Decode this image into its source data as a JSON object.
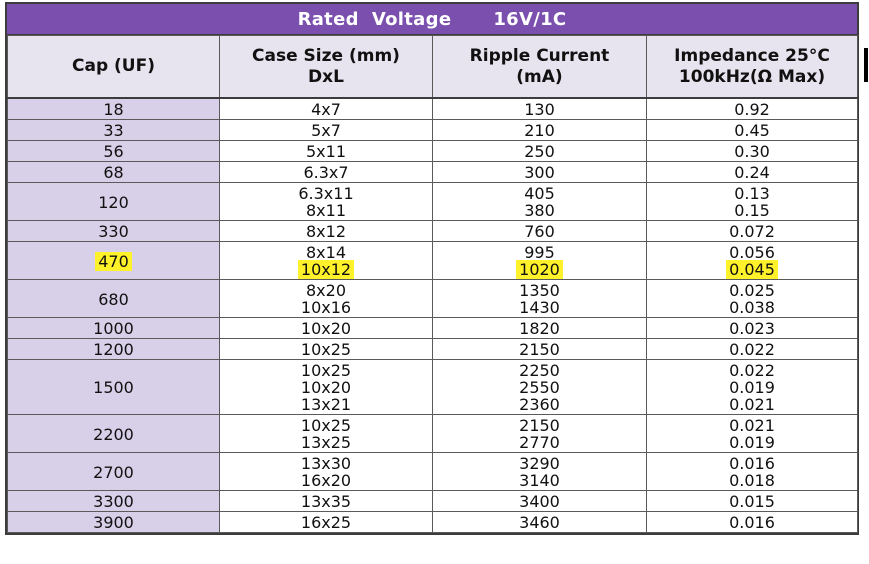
{
  "title": {
    "label": "Rated  Voltage",
    "value": "16V/1C"
  },
  "headers": {
    "cap": "Cap (UF)",
    "case_line1": "Case Size (mm)",
    "case_line2": "DxL",
    "ripple_line1": "Ripple Current",
    "ripple_line2": "(mA)",
    "impedance_line1": "Impedance 25°C",
    "impedance_line2": "100kHz(Ω Max)"
  },
  "rows": [
    {
      "cap": "18",
      "case": [
        "4x7"
      ],
      "ripple": [
        "130"
      ],
      "imp": [
        "0.92"
      ]
    },
    {
      "cap": "33",
      "case": [
        "5x7"
      ],
      "ripple": [
        "210"
      ],
      "imp": [
        "0.45"
      ]
    },
    {
      "cap": "56",
      "case": [
        "5x11"
      ],
      "ripple": [
        "250"
      ],
      "imp": [
        "0.30"
      ]
    },
    {
      "cap": "68",
      "case": [
        "6.3x7"
      ],
      "ripple": [
        "300"
      ],
      "imp": [
        "0.24"
      ]
    },
    {
      "cap": "120",
      "case": [
        "6.3x11",
        "8x11"
      ],
      "ripple": [
        "405",
        "380"
      ],
      "imp": [
        "0.13",
        "0.15"
      ]
    },
    {
      "cap": "330",
      "case": [
        "8x12"
      ],
      "ripple": [
        "760"
      ],
      "imp": [
        "0.072"
      ]
    },
    {
      "cap": "470",
      "case": [
        "8x14",
        "10x12"
      ],
      "ripple": [
        "995",
        "1020"
      ],
      "imp": [
        "0.056",
        "0.045"
      ]
    },
    {
      "cap": "680",
      "case": [
        "8x20",
        "10x16"
      ],
      "ripple": [
        "1350",
        "1430"
      ],
      "imp": [
        "0.025",
        "0.038"
      ]
    },
    {
      "cap": "1000",
      "case": [
        "10x20"
      ],
      "ripple": [
        "1820"
      ],
      "imp": [
        "0.023"
      ]
    },
    {
      "cap": "1200",
      "case": [
        "10x25"
      ],
      "ripple": [
        "2150"
      ],
      "imp": [
        "0.022"
      ]
    },
    {
      "cap": "1500",
      "case": [
        "10x25",
        "10x20",
        "13x21"
      ],
      "ripple": [
        "2250",
        "2550",
        "2360"
      ],
      "imp": [
        "0.022",
        "0.019",
        "0.021"
      ]
    },
    {
      "cap": "2200",
      "case": [
        "10x25",
        "13x25"
      ],
      "ripple": [
        "2150",
        "2770"
      ],
      "imp": [
        "0.021",
        "0.019"
      ]
    },
    {
      "cap": "2700",
      "case": [
        "13x30",
        "16x20"
      ],
      "ripple": [
        "3290",
        "3140"
      ],
      "imp": [
        "0.016",
        "0.018"
      ]
    },
    {
      "cap": "3300",
      "case": [
        "13x35"
      ],
      "ripple": [
        "3400"
      ],
      "imp": [
        "0.015"
      ]
    },
    {
      "cap": "3900",
      "case": [
        "16x25"
      ],
      "ripple": [
        "3460"
      ],
      "imp": [
        "0.016"
      ]
    }
  ],
  "highlight": {
    "color": "#fff22a",
    "row_cap": "470",
    "sub_index": 1
  },
  "colors": {
    "title_bar": "#7a4fae",
    "header_bg": "#e7e3ef",
    "cap_column_bg": "#d8d0e8"
  }
}
